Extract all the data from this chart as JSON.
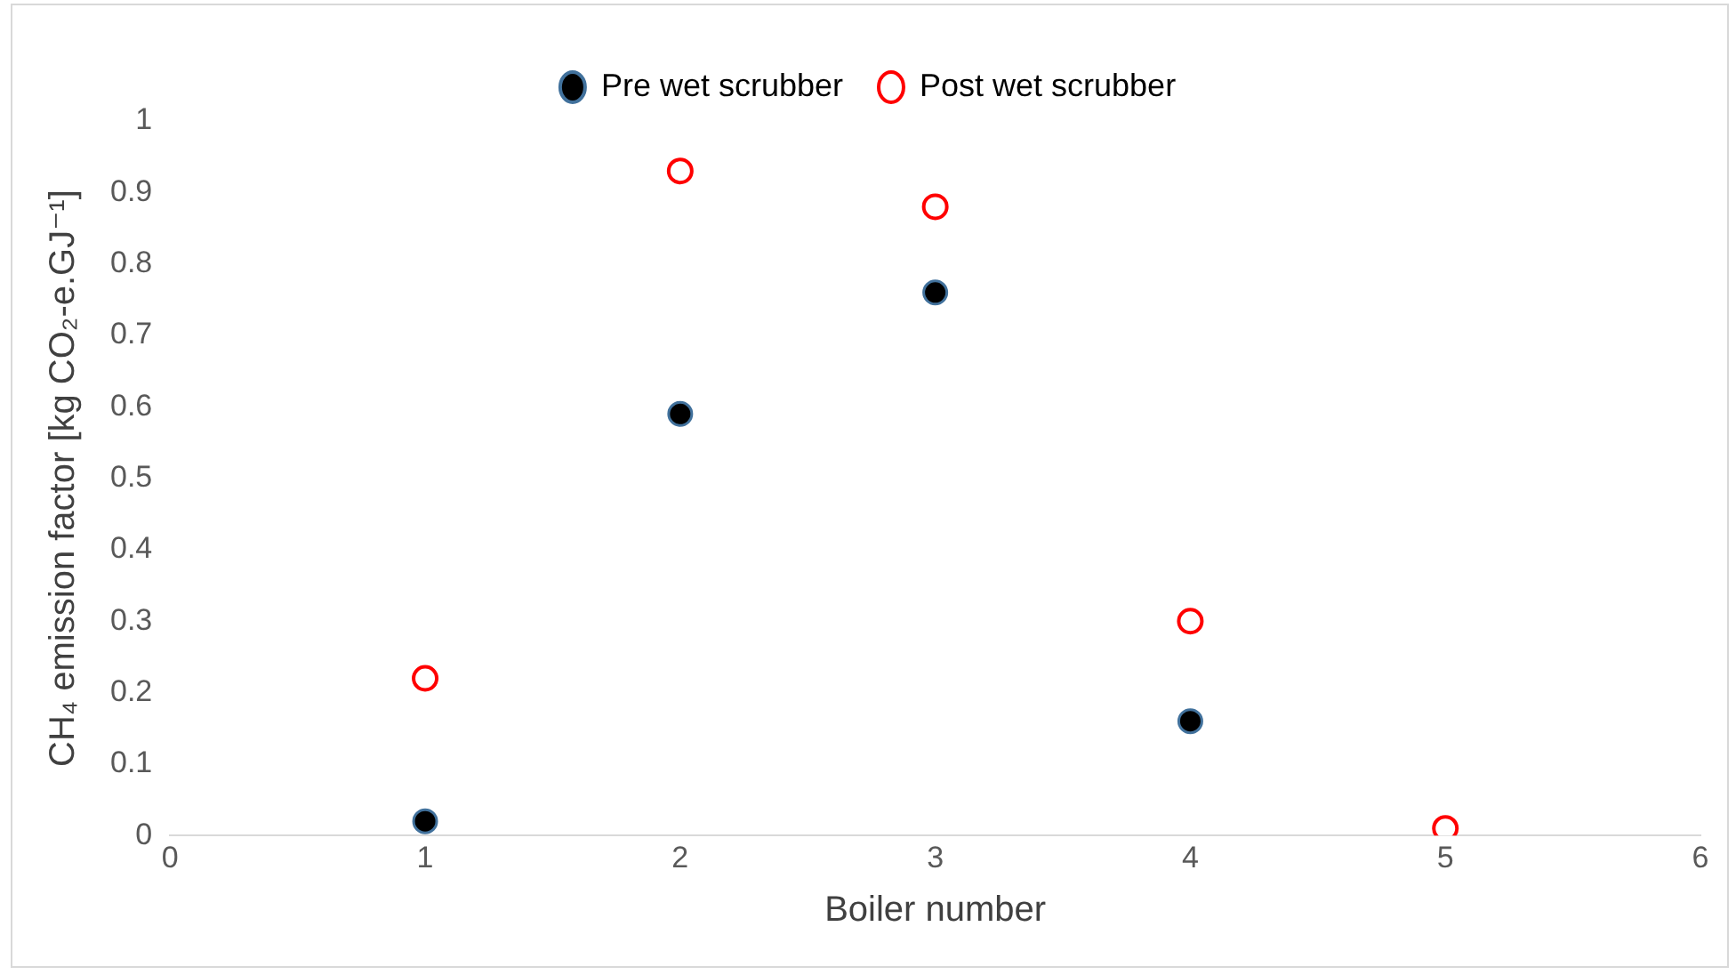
{
  "chart_data": {
    "type": "scatter",
    "xlabel": "Boiler number",
    "ylabel": "CH₄ emission factor [kg CO₂-e.GJ⁻¹]",
    "x": [
      1,
      2,
      3,
      4,
      5
    ],
    "series": [
      {
        "name": "Pre wet scrubber",
        "color": "#000000",
        "values": [
          0.02,
          0.59,
          0.76,
          0.16,
          null
        ]
      },
      {
        "name": "Post wet scrubber",
        "color": "#ff0000",
        "values": [
          0.22,
          0.93,
          0.88,
          0.3,
          0.01
        ]
      }
    ],
    "xlim": [
      0,
      6
    ],
    "xticks": [
      0,
      1,
      2,
      3,
      4,
      5,
      6
    ],
    "ylim": [
      0,
      1
    ],
    "yticks": [
      0,
      0.1,
      0.2,
      0.3,
      0.4,
      0.5,
      0.6,
      0.7,
      0.8,
      0.9,
      1
    ],
    "grid": false,
    "legend": "top",
    "marker": "circle"
  }
}
